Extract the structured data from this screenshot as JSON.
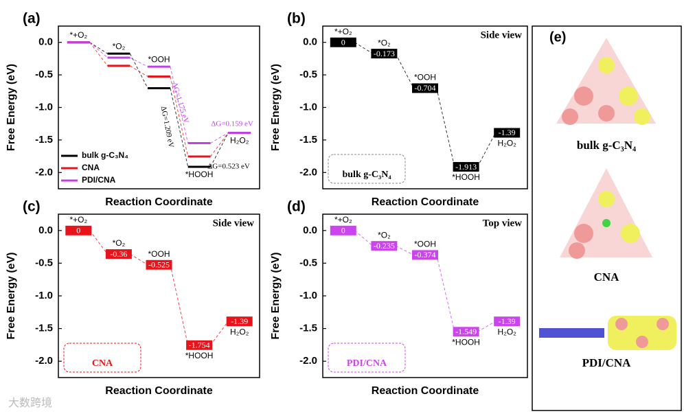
{
  "chart_data": [
    {
      "type": "step",
      "panel": "(a)",
      "ylabel": "Free Energy (eV)",
      "xlabel": "Reaction Coordinate",
      "categories": [
        "*+O₂",
        "*O₂",
        "*OOH",
        "*HOOH",
        "H₂O₂"
      ],
      "series": [
        {
          "name": "bulk g-C₃N₄",
          "color": "#000000",
          "values": [
            0,
            -0.173,
            -0.704,
            -1.913,
            -1.39
          ]
        },
        {
          "name": "CNA",
          "color": "#e8141b",
          "values": [
            0,
            -0.36,
            -0.525,
            -1.754,
            -1.39
          ]
        },
        {
          "name": "PDI/CNA",
          "color": "#c040e8",
          "values": [
            0,
            -0.235,
            -0.374,
            -1.549,
            -1.39
          ]
        }
      ],
      "annotations": [
        {
          "text": "ΔG=1.175 eV",
          "color": "#c040e8"
        },
        {
          "text": "ΔG=1.209 eV",
          "color": "#000000"
        },
        {
          "text": "ΔG=0.523 eV",
          "color": "#000000"
        },
        {
          "text": "ΔG=0.159 eV",
          "color": "#c040e8"
        }
      ],
      "legend": "lower left",
      "ylim": [
        -2.25,
        0.25
      ],
      "yticks": [
        {
          "value": 0,
          "label": "0.0"
        },
        -0.5,
        {
          "value": -1,
          "label": "-1.0"
        },
        -1.5,
        {
          "value": -2,
          "label": "-2.0"
        }
      ]
    },
    {
      "type": "step",
      "panel": "(b)",
      "ylabel": "Free Energy (eV)",
      "xlabel": "Reaction Coordinate",
      "categories": [
        "*+O₂",
        "*O₂",
        "*OOH",
        "*HOOH",
        "H₂O₂"
      ],
      "color": "#000000",
      "values": [
        0,
        -0.173,
        -0.704,
        -1.913,
        -1.39
      ],
      "view": "Side view",
      "inset_label": "bulk g-C₃N₄",
      "ylim": [
        -2.25,
        0.25
      ],
      "yticks": [
        {
          "value": 0,
          "label": "0.0"
        },
        -0.5,
        {
          "value": -1,
          "label": "-1.0"
        },
        -1.5,
        {
          "value": -2,
          "label": "-2.0"
        }
      ]
    },
    {
      "type": "step",
      "panel": "(c)",
      "ylabel": "Free Energy (eV)",
      "xlabel": "Reaction Coordinate",
      "categories": [
        "*+O₂",
        "*O₂",
        "*OOH",
        "*HOOH",
        "H₂O₂"
      ],
      "color": "#e8141b",
      "values": [
        0,
        -0.36,
        -0.525,
        -1.754,
        -1.39
      ],
      "view": "Side view",
      "inset_label": "CNA",
      "ylim": [
        -2.25,
        0.25
      ],
      "yticks": [
        {
          "value": 0,
          "label": "0.0"
        },
        -0.5,
        {
          "value": -1,
          "label": "-1.0"
        },
        -1.5,
        {
          "value": -2,
          "label": "-2.0"
        }
      ]
    },
    {
      "type": "step",
      "panel": "(d)",
      "ylabel": "Free Energy (eV)",
      "xlabel": "Reaction Coordinate",
      "categories": [
        "*+O₂",
        "*O₂",
        "*OOH",
        "*HOOH",
        "H₂O₂"
      ],
      "color": "#cc44ee",
      "values": [
        0,
        -0.235,
        -0.374,
        -1.549,
        -1.39
      ],
      "view": "Top view",
      "inset_label": "PDI/CNA",
      "ylim": [
        -2.25,
        0.25
      ],
      "yticks": [
        {
          "value": 0,
          "label": "0.0"
        },
        -0.5,
        {
          "value": -1,
          "label": "-1.0"
        },
        -1.5,
        {
          "value": -2,
          "label": "-2.0"
        }
      ]
    }
  ],
  "panel_e": {
    "label": "(e)",
    "captions": [
      "bulk g-C₃N₄",
      "CNA",
      "PDI/CNA"
    ]
  },
  "watermark": "大数跨境"
}
